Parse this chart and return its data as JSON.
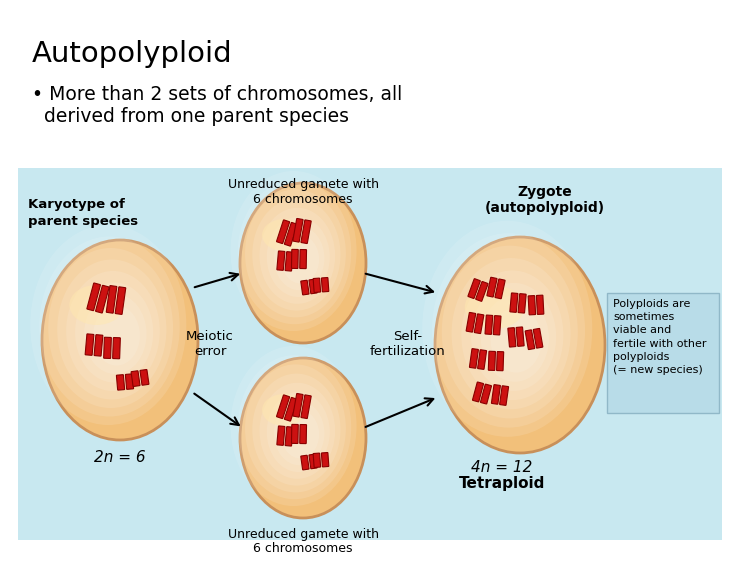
{
  "title": "Autopolyploid",
  "bullet_prefix": "• ",
  "bullet_line1": "More than 2 sets of chromosomes, all",
  "bullet_line2": "  derived from one parent species",
  "bg_color": "#ffffff",
  "diagram_bg": "#c8e8f0",
  "cell_color": "#f2c07a",
  "cell_edge": "#c8905a",
  "chrom_color": "#cc1111",
  "chrom_edge": "#880000",
  "label_karyotype": "Karyotype of\nparent species",
  "label_2n": "2n = 6",
  "label_top_gamete_l1": "Unreduced gamete with",
  "label_top_gamete_l2": "6 chromosomes",
  "label_bottom_gamete_l1": "Unreduced gamete with",
  "label_bottom_gamete_l2": "6 chromosomes",
  "label_zygote_l1": "Zygote",
  "label_zygote_l2": "(autopolyploid)",
  "label_4n": "4n = 12",
  "label_tetraploid": "Tetraploid",
  "label_meiotic_l1": "Meiotic",
  "label_meiotic_l2": "error",
  "label_self_l1": "Self-",
  "label_self_l2": "fertilization",
  "polyploid_box_bg": "#b8dce8",
  "polyploid_box_edge": "#90b8c8",
  "polyploid_text": "Polyploids are\nsometimes\nviable and\nfertile with other\npolyploids\n(= new species)"
}
